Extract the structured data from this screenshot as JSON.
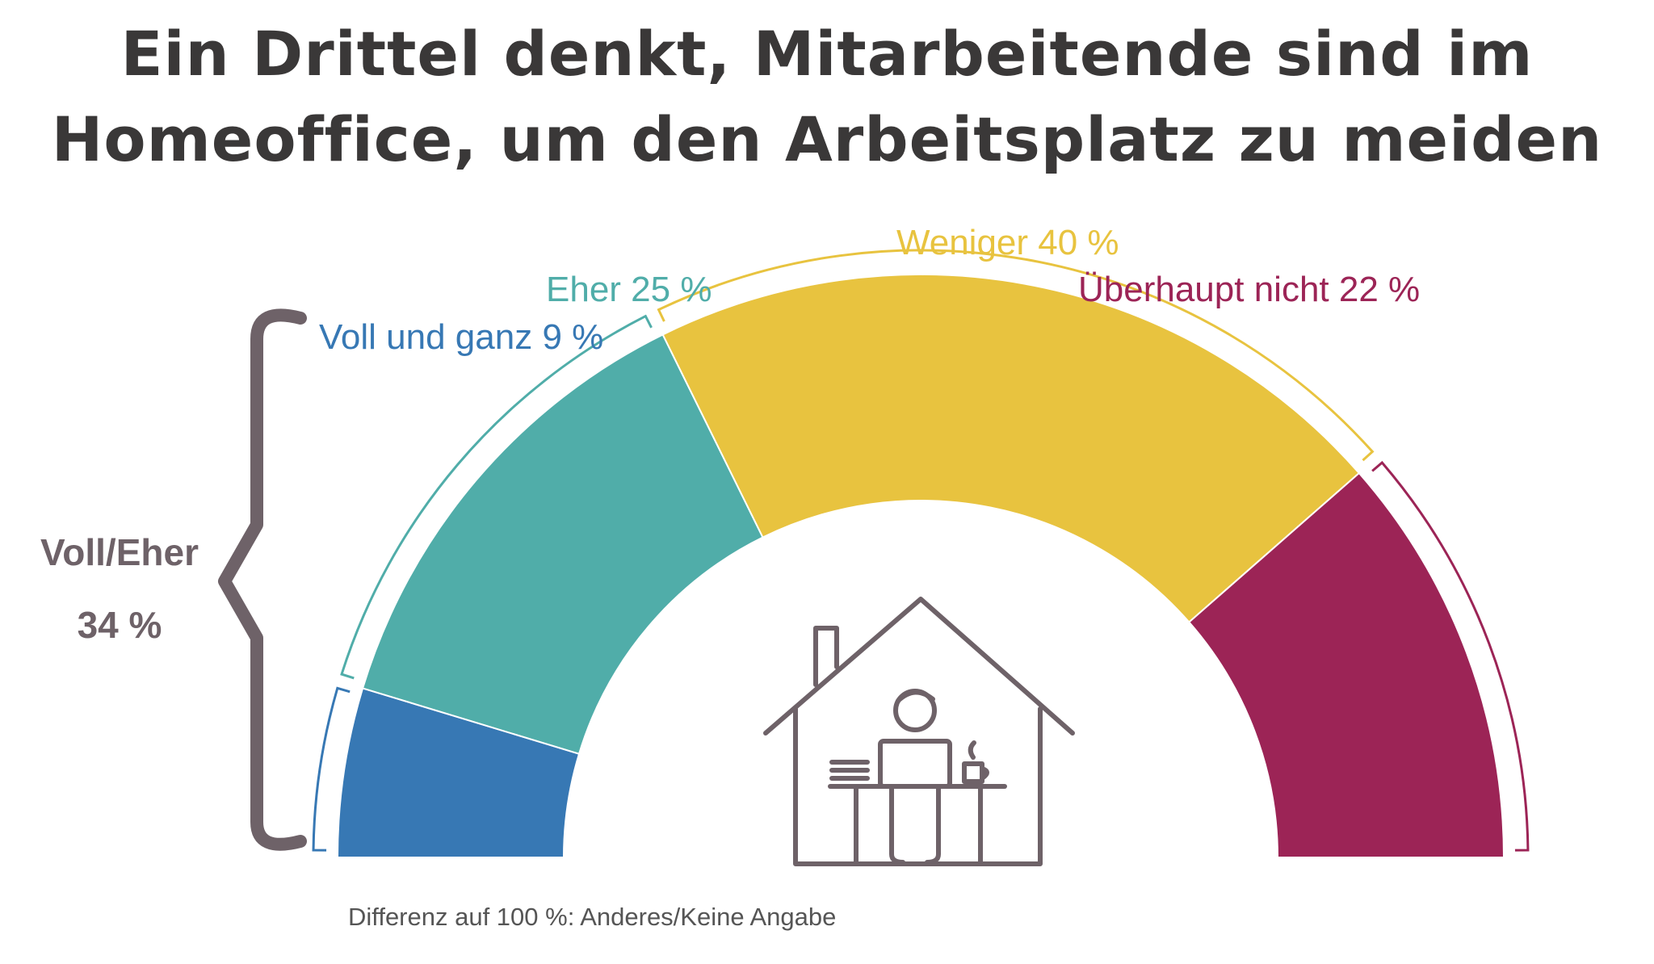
{
  "chart_data": {
    "type": "pie",
    "title_lines": [
      "Ein Drittel denkt, Mitarbeitende sind im",
      "Homeoffice, um den Arbeitsplatz zu meiden"
    ],
    "slices": [
      {
        "label": "Voll und ganz 9 %",
        "value": 9,
        "color": "#3778b4"
      },
      {
        "label": "Eher 25 %",
        "value": 25,
        "color": "#50ada9"
      },
      {
        "label": "Weniger 40 %",
        "value": 40,
        "color": "#e8c33f"
      },
      {
        "label": "Überhaupt nicht 22 %",
        "value": 22,
        "color": "#9c2456"
      }
    ],
    "group": {
      "label": "Voll/Eher",
      "value_label": "34 %",
      "value": 34
    },
    "footnote": "Differenz auf 100 %: Anderes/Keine Angabe",
    "icon": "home-office-icon"
  }
}
